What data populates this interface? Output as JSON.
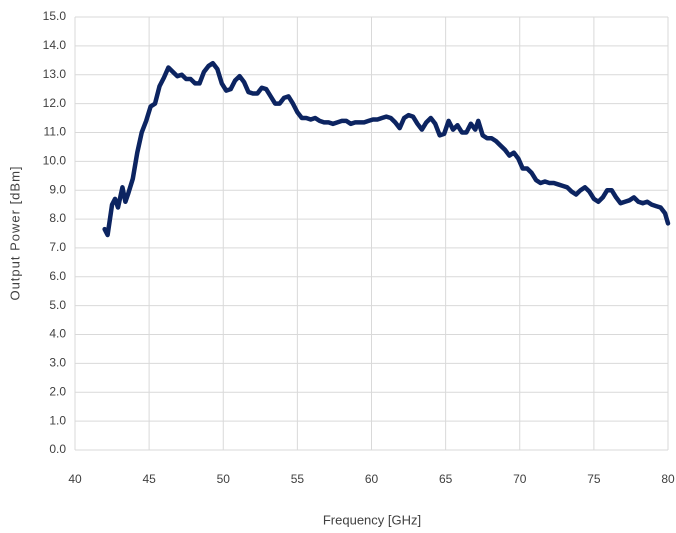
{
  "chart_data": {
    "type": "line",
    "xlabel": "Frequency [GHz]",
    "ylabel": "Output Power [dBm]",
    "x": [
      42.0,
      42.2,
      42.5,
      42.7,
      42.9,
      43.2,
      43.4,
      43.6,
      43.9,
      44.2,
      44.5,
      44.8,
      45.1,
      45.4,
      45.7,
      46.0,
      46.3,
      46.6,
      46.9,
      47.2,
      47.5,
      47.8,
      48.1,
      48.4,
      48.7,
      49.0,
      49.3,
      49.6,
      49.9,
      50.2,
      50.5,
      50.8,
      51.1,
      51.4,
      51.7,
      52.0,
      52.3,
      52.6,
      52.9,
      53.2,
      53.5,
      53.8,
      54.1,
      54.4,
      54.7,
      55.0,
      55.3,
      55.6,
      55.9,
      56.2,
      56.5,
      56.8,
      57.1,
      57.4,
      57.7,
      58.0,
      58.3,
      58.6,
      58.9,
      59.2,
      59.5,
      59.8,
      60.1,
      60.4,
      60.7,
      61.0,
      61.3,
      61.6,
      61.9,
      62.2,
      62.5,
      62.8,
      63.1,
      63.4,
      63.7,
      64.0,
      64.3,
      64.6,
      64.9,
      65.2,
      65.5,
      65.8,
      66.1,
      66.4,
      66.7,
      67.0,
      67.2,
      67.5,
      67.8,
      68.1,
      68.4,
      68.7,
      69.0,
      69.3,
      69.6,
      69.9,
      70.2,
      70.5,
      70.8,
      71.1,
      71.4,
      71.7,
      72.0,
      72.3,
      72.6,
      72.9,
      73.2,
      73.5,
      73.8,
      74.1,
      74.4,
      74.7,
      75.0,
      75.3,
      75.6,
      75.9,
      76.2,
      76.5,
      76.8,
      77.1,
      77.4,
      77.7,
      78.0,
      78.3,
      78.6,
      78.9,
      79.2,
      79.5,
      79.8,
      80.0
    ],
    "series": [
      {
        "color": "#0c2461",
        "values": [
          7.65,
          7.45,
          8.5,
          8.7,
          8.4,
          9.1,
          8.6,
          8.9,
          9.4,
          10.3,
          11.0,
          11.4,
          11.9,
          12.0,
          12.6,
          12.9,
          13.25,
          13.1,
          12.95,
          13.0,
          12.85,
          12.85,
          12.7,
          12.7,
          13.1,
          13.3,
          13.4,
          13.2,
          12.7,
          12.45,
          12.5,
          12.8,
          12.95,
          12.75,
          12.4,
          12.35,
          12.35,
          12.55,
          12.5,
          12.25,
          12.0,
          12.0,
          12.2,
          12.25,
          12.0,
          11.7,
          11.5,
          11.5,
          11.45,
          11.5,
          11.4,
          11.35,
          11.35,
          11.3,
          11.35,
          11.4,
          11.4,
          11.3,
          11.35,
          11.35,
          11.35,
          11.4,
          11.45,
          11.45,
          11.5,
          11.55,
          11.5,
          11.35,
          11.15,
          11.5,
          11.6,
          11.55,
          11.3,
          11.1,
          11.35,
          11.5,
          11.3,
          10.9,
          10.95,
          11.4,
          11.1,
          11.25,
          11.0,
          11.0,
          11.3,
          11.1,
          11.4,
          10.9,
          10.8,
          10.8,
          10.7,
          10.55,
          10.4,
          10.2,
          10.3,
          10.1,
          9.75,
          9.75,
          9.6,
          9.35,
          9.25,
          9.3,
          9.25,
          9.25,
          9.2,
          9.15,
          9.1,
          8.95,
          8.85,
          9.0,
          9.1,
          8.95,
          8.7,
          8.6,
          8.75,
          9.0,
          9.0,
          8.75,
          8.55,
          8.6,
          8.65,
          8.75,
          8.6,
          8.55,
          8.6,
          8.5,
          8.45,
          8.4,
          8.2,
          7.85
        ]
      }
    ],
    "xlim": [
      40,
      80
    ],
    "xticks": [
      40,
      45,
      50,
      55,
      60,
      65,
      70,
      75,
      80
    ],
    "ylim": [
      0,
      15
    ],
    "yticks": [
      {
        "value": 0,
        "label": "0.0"
      },
      {
        "value": 1,
        "label": "1.0"
      },
      {
        "value": 2,
        "label": "2.0"
      },
      {
        "value": 3,
        "label": "3.0"
      },
      {
        "value": 4,
        "label": "4.0"
      },
      {
        "value": 5,
        "label": "5.0"
      },
      {
        "value": 6,
        "label": "6.0"
      },
      {
        "value": 7,
        "label": "7.0"
      },
      {
        "value": 8,
        "label": "8.0"
      },
      {
        "value": 9,
        "label": "9.0"
      },
      {
        "value": 10,
        "label": "10.0"
      },
      {
        "value": 11,
        "label": "11.0"
      },
      {
        "value": 12,
        "label": "12.0"
      },
      {
        "value": 13,
        "label": "13.0"
      },
      {
        "value": 14,
        "label": "14.0"
      },
      {
        "value": 15,
        "label": "15.0"
      }
    ],
    "grid": true
  }
}
